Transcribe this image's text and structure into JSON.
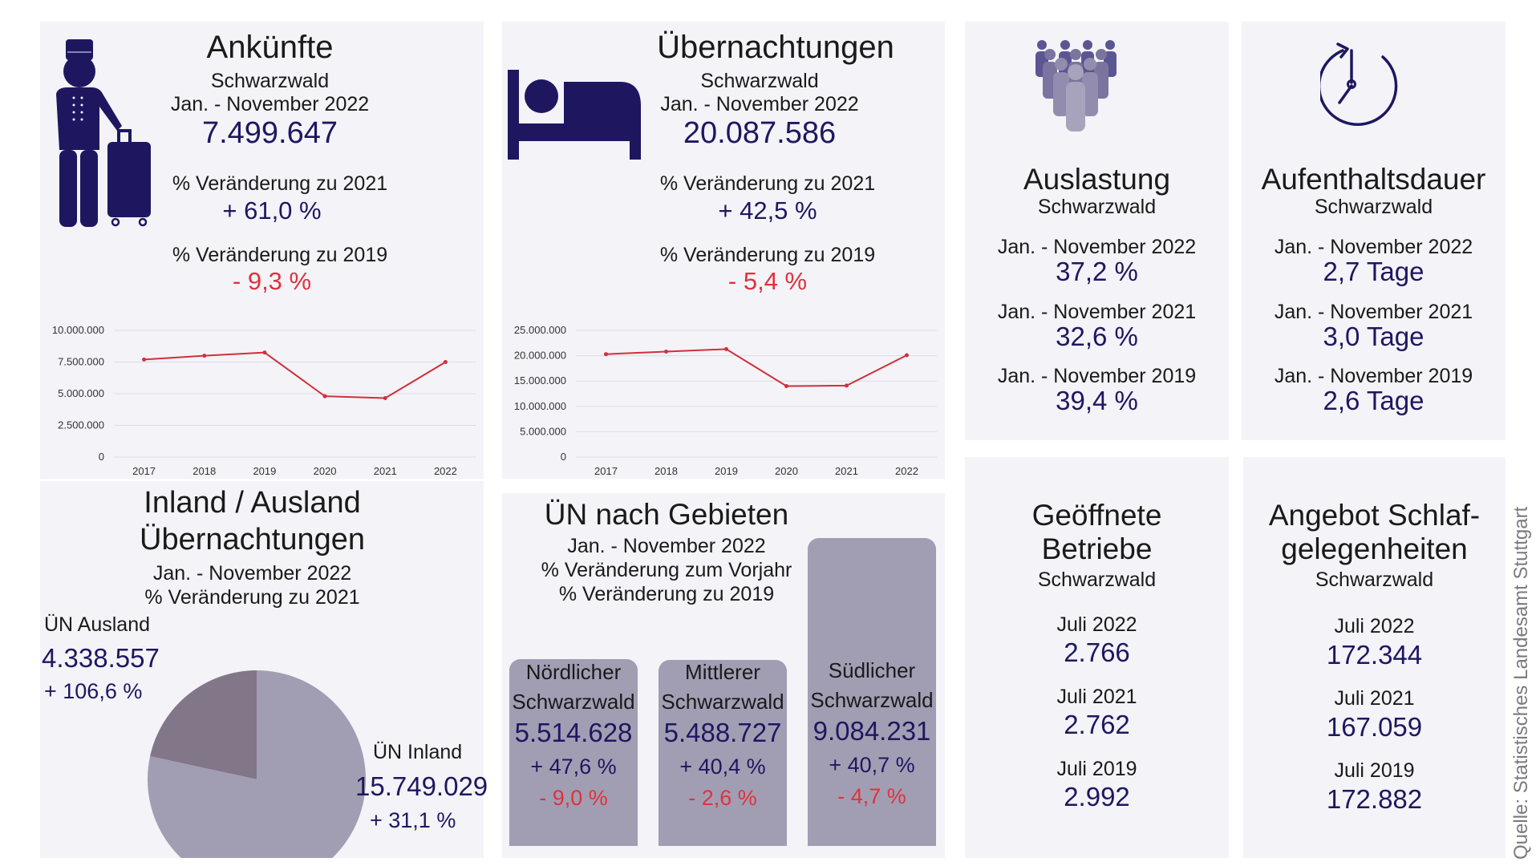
{
  "colors": {
    "panel_bg": "#f3f3f8",
    "accent_navy": "#1e1760",
    "negative_red": "#e0323c",
    "line_red": "#d0303a",
    "pie_inland": "#a19eb3",
    "pie_ausland": "#827689",
    "bar_fill": "#a19eb3"
  },
  "ankuenfte": {
    "icon": "bellhop-with-luggage-icon",
    "title": "Ankünfte",
    "region": "Schwarzwald",
    "period": "Jan. - November 2022",
    "value": "7.499.647",
    "change_2021_label": "% Veränderung zu 2021",
    "change_2021_value": "+ 61,0 %",
    "change_2019_label": "% Veränderung zu 2019",
    "change_2019_value": "- 9,3 %"
  },
  "uebernachtungen": {
    "icon": "bed-icon",
    "title": "Übernachtungen",
    "region": "Schwarzwald",
    "period": "Jan. - November 2022",
    "value": "20.087.586",
    "change_2021_label": "% Veränderung zu 2021",
    "change_2021_value": "+ 42,5 %",
    "change_2019_label": "% Veränderung zu 2019",
    "change_2019_value": "- 5,4 %"
  },
  "auslastung": {
    "icon": "crowd-icon",
    "title": "Auslastung",
    "region": "Schwarzwald",
    "rows": [
      {
        "label": "Jan. - November 2022",
        "value": "37,2 %"
      },
      {
        "label": "Jan. - November 2021",
        "value": "32,6 %"
      },
      {
        "label": "Jan. - November 2019",
        "value": "39,4 %"
      }
    ]
  },
  "aufenthaltsdauer": {
    "icon": "clock-icon",
    "title": "Aufenthaltsdauer",
    "region": "Schwarzwald",
    "rows": [
      {
        "label": "Jan. - November 2022",
        "value": "2,7 Tage"
      },
      {
        "label": "Jan. - November 2021",
        "value": "3,0 Tage"
      },
      {
        "label": "Jan. - November 2019",
        "value": "2,6 Tage"
      }
    ]
  },
  "inland_ausland": {
    "title_line1": "Inland / Ausland",
    "title_line2": "Übernachtungen",
    "period": "Jan. - November 2022",
    "change_label": "% Veränderung zu 2021",
    "ausland": {
      "label": "ÜN Ausland",
      "value": "4.338.557",
      "change": "+ 106,6 %"
    },
    "inland": {
      "label": "ÜN Inland",
      "value": "15.749.029",
      "change": "+ 31,1 %"
    }
  },
  "gebiete": {
    "title": "ÜN nach Gebieten",
    "period": "Jan. - November 2022",
    "line_vorjahr": "% Veränderung zum Vorjahr",
    "line_2019": "% Veränderung zu 2019",
    "areas": [
      {
        "name1": "Nördlicher",
        "name2": "Schwarzwald",
        "value": "5.514.628",
        "change_vorjahr": "+ 47,6 %",
        "change_2019": "- 9,0 %"
      },
      {
        "name1": "Mittlerer",
        "name2": "Schwarzwald",
        "value": "5.488.727",
        "change_vorjahr": "+ 40,4 %",
        "change_2019": "- 2,6 %"
      },
      {
        "name1": "Südlicher",
        "name2": "Schwarzwald",
        "value": "9.084.231",
        "change_vorjahr": "+ 40,7 %",
        "change_2019": "- 4,7 %"
      }
    ]
  },
  "betriebe": {
    "title_line1": "Geöffnete",
    "title_line2": "Betriebe",
    "region": "Schwarzwald",
    "rows": [
      {
        "label": "Juli 2022",
        "value": "2.766"
      },
      {
        "label": "Juli 2021",
        "value": "2.762"
      },
      {
        "label": "Juli 2019",
        "value": "2.992"
      }
    ]
  },
  "schlafgelegenheiten": {
    "title_line1": "Angebot Schlaf-",
    "title_line2": "gelegenheiten",
    "region": "Schwarzwald",
    "rows": [
      {
        "label": "Juli 2022",
        "value": "172.344"
      },
      {
        "label": "Juli 2021",
        "value": "167.059"
      },
      {
        "label": "Juli 2019",
        "value": "172.882"
      }
    ]
  },
  "source": "Quelle:  Statistisches Landesamt Stuttgart",
  "chart_data": [
    {
      "id": "ankuenfte_line",
      "type": "line",
      "title": "",
      "categories": [
        "2017",
        "2018",
        "2019",
        "2020",
        "2021",
        "2022"
      ],
      "values": [
        7700000,
        8000000,
        8250000,
        4800000,
        4650000,
        7500000
      ],
      "ylim": [
        0,
        10000000
      ],
      "yticks": [
        0,
        2500000,
        5000000,
        7500000,
        10000000
      ],
      "ytick_labels": [
        "0",
        "2.500.000",
        "5.000.000",
        "7.500.000",
        "10.000.000"
      ],
      "grid": true,
      "legend": "none"
    },
    {
      "id": "uebernachtungen_line",
      "type": "line",
      "title": "",
      "categories": [
        "2017",
        "2018",
        "2019",
        "2020",
        "2021",
        "2022"
      ],
      "values": [
        20300000,
        20800000,
        21300000,
        14000000,
        14100000,
        20100000
      ],
      "ylim": [
        0,
        25000000
      ],
      "yticks": [
        0,
        5000000,
        10000000,
        15000000,
        20000000,
        25000000
      ],
      "ytick_labels": [
        "0",
        "5.000.000",
        "10.000.000",
        "15.000.000",
        "20.000.000",
        "25.000.000"
      ],
      "grid": true,
      "legend": "none"
    },
    {
      "id": "inland_ausland_pie",
      "type": "pie",
      "title": "Inland / Ausland Übernachtungen",
      "labels": [
        "ÜN Ausland",
        "ÜN Inland"
      ],
      "values": [
        4338557,
        15749029
      ],
      "start": "top",
      "legend": "none"
    },
    {
      "id": "gebiete_bar",
      "type": "bar",
      "title": "ÜN nach Gebieten",
      "categories": [
        "Nördlicher Schwarzwald",
        "Mittlerer Schwarzwald",
        "Südlicher Schwarzwald"
      ],
      "values": [
        5514628,
        5488727,
        9084231
      ],
      "ylim": [
        0,
        9084231
      ],
      "legend": "none"
    }
  ]
}
